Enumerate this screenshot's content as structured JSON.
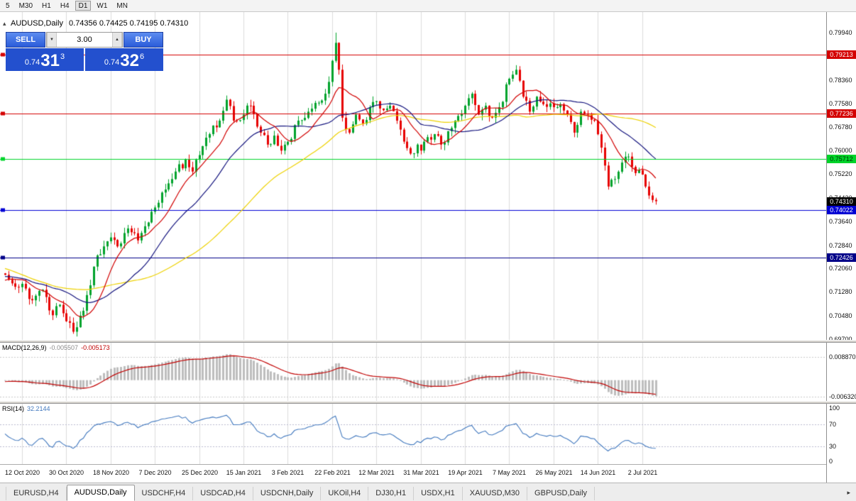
{
  "toolbar": {
    "timeframes": [
      "5",
      "M30",
      "H1",
      "H4",
      "D1",
      "W1",
      "MN"
    ],
    "active": "D1"
  },
  "chart_header": {
    "collapse_icon": "▴",
    "symbol_title": "AUDUSD,Daily",
    "ohlc": "0.74356 0.74425 0.74195 0.74310"
  },
  "one_click": {
    "sell_label": "SELL",
    "buy_label": "BUY",
    "volume": "3.00",
    "volume_down_icon": "▼",
    "volume_up_icon": "▲",
    "sell_price_small": "0.74",
    "sell_price_big": "31",
    "sell_price_sup": "3",
    "buy_price_small": "0.74",
    "buy_price_big": "32",
    "buy_price_sup": "6"
  },
  "price_scale": {
    "labels": [
      "0.79940",
      "0.79160",
      "0.78360",
      "0.77580",
      "0.76780",
      "0.76000",
      "0.75220",
      "0.74420",
      "0.73640",
      "0.72840",
      "0.72060",
      "0.71280",
      "0.70480",
      "0.69700"
    ],
    "current_price_label": "0.74310",
    "current_price": 0.7431,
    "current_tag_color": "#000000"
  },
  "levels": [
    {
      "price": 0.79213,
      "label": "0.79213",
      "line_color": "#D40000",
      "text_color": "#FFFFFF"
    },
    {
      "price": 0.77236,
      "label": "0.77236",
      "line_color": "#D40000",
      "text_color": "#FFFFFF"
    },
    {
      "price": 0.75712,
      "label": "0.75712",
      "line_color": "#00D42A",
      "text_color": "#003300"
    },
    {
      "price": 0.74022,
      "label": "0.74022",
      "line_color": "#0000D4",
      "text_color": "#FFFFFF"
    },
    {
      "price": 0.72426,
      "label": "0.72426",
      "line_color": "#000088",
      "text_color": "#FFFFFF"
    }
  ],
  "macd_panel": {
    "label": "MACD(12,26,9)",
    "value1": "-0.005507",
    "value2": "-0.005173",
    "scale_top": "0.008870",
    "scale_bottom": "-0.006320"
  },
  "rsi_panel": {
    "label": "RSI(14)",
    "value": "32.2144",
    "scale": [
      "100",
      "70",
      "30",
      "0"
    ],
    "level_high": 70,
    "level_low": 30
  },
  "time_axis": {
    "dates": [
      "12 Oct 2020",
      "30 Oct 2020",
      "18 Nov 2020",
      "7 Dec 2020",
      "25 Dec 2020",
      "15 Jan 2021",
      "3 Feb 2021",
      "22 Feb 2021",
      "12 Mar 2021",
      "31 Mar 2021",
      "19 Apr 2021",
      "7 May 2021",
      "26 May 2021",
      "14 Jun 2021",
      "2 Jul 2021"
    ]
  },
  "tabs": {
    "items": [
      "EURUSD,H4",
      "AUDUSD,Daily",
      "USDCHF,H4",
      "USDCAD,H4",
      "USDCNH,Daily",
      "UKOil,H4",
      "DJ30,H1",
      "USDX,H1",
      "XAUUSD,M30",
      "GBPUSD,Daily"
    ],
    "active_index": 1,
    "scroll_right_icon": "▸"
  },
  "chart_data": {
    "type": "candlestick",
    "symbol": "AUDUSD",
    "timeframe": "Daily",
    "last_ohlc": {
      "open": 0.74356,
      "high": 0.74425,
      "low": 0.74195,
      "close": 0.7431
    },
    "y_range": [
      0.697,
      0.7994
    ],
    "extreme_high": 0.7994,
    "extreme_low": 0.6988,
    "visible_candles": 192,
    "first_label_index": 5,
    "label_indices_step": 13,
    "close_anchors": [
      [
        0,
        0.7185
      ],
      [
        3,
        0.7145
      ],
      [
        5,
        0.7155
      ],
      [
        8,
        0.71
      ],
      [
        11,
        0.7135
      ],
      [
        14,
        0.705
      ],
      [
        16,
        0.7085
      ],
      [
        18,
        0.703
      ],
      [
        20,
        0.6995
      ],
      [
        21,
        0.701
      ],
      [
        23,
        0.7065
      ],
      [
        25,
        0.715
      ],
      [
        27,
        0.725
      ],
      [
        29,
        0.728
      ],
      [
        31,
        0.731
      ],
      [
        33,
        0.728
      ],
      [
        36,
        0.734
      ],
      [
        39,
        0.73
      ],
      [
        42,
        0.736
      ],
      [
        44,
        0.741
      ],
      [
        47,
        0.747
      ],
      [
        50,
        0.753
      ],
      [
        53,
        0.757
      ],
      [
        55,
        0.753
      ],
      [
        57,
        0.7585
      ],
      [
        60,
        0.7655
      ],
      [
        63,
        0.77
      ],
      [
        65,
        0.777
      ],
      [
        67,
        0.77
      ],
      [
        70,
        0.772
      ],
      [
        72,
        0.775
      ],
      [
        74,
        0.768
      ],
      [
        77,
        0.762
      ],
      [
        79,
        0.765
      ],
      [
        81,
        0.76
      ],
      [
        83,
        0.763
      ],
      [
        86,
        0.77
      ],
      [
        89,
        0.773
      ],
      [
        92,
        0.776
      ],
      [
        94,
        0.779
      ],
      [
        96,
        0.79
      ],
      [
        97,
        0.796
      ],
      [
        98,
        0.787
      ],
      [
        99,
        0.771
      ],
      [
        101,
        0.766
      ],
      [
        103,
        0.772
      ],
      [
        105,
        0.769
      ],
      [
        107,
        0.7745
      ],
      [
        109,
        0.7765
      ],
      [
        111,
        0.7735
      ],
      [
        113,
        0.775
      ],
      [
        115,
        0.77
      ],
      [
        117,
        0.763
      ],
      [
        119,
        0.759
      ],
      [
        121,
        0.762
      ],
      [
        122,
        0.76
      ],
      [
        124,
        0.7645
      ],
      [
        126,
        0.7655
      ],
      [
        128,
        0.762
      ],
      [
        130,
        0.7665
      ],
      [
        132,
        0.77
      ],
      [
        135,
        0.775
      ],
      [
        137,
        0.779
      ],
      [
        139,
        0.772
      ],
      [
        141,
        0.775
      ],
      [
        143,
        0.771
      ],
      [
        145,
        0.7745
      ],
      [
        148,
        0.784
      ],
      [
        150,
        0.787
      ],
      [
        152,
        0.778
      ],
      [
        154,
        0.773
      ],
      [
        156,
        0.778
      ],
      [
        158,
        0.7755
      ],
      [
        161,
        0.7745
      ],
      [
        163,
        0.7755
      ],
      [
        165,
        0.772
      ],
      [
        167,
        0.766
      ],
      [
        169,
        0.773
      ],
      [
        171,
        0.772
      ],
      [
        173,
        0.77
      ],
      [
        175,
        0.761
      ],
      [
        176,
        0.755
      ],
      [
        177,
        0.748
      ],
      [
        179,
        0.7505
      ],
      [
        181,
        0.756
      ],
      [
        183,
        0.758
      ],
      [
        185,
        0.7525
      ],
      [
        187,
        0.752
      ],
      [
        188,
        0.748
      ],
      [
        189,
        0.745
      ],
      [
        190,
        0.7435
      ],
      [
        191,
        0.7431
      ]
    ],
    "warmup_anchors": [
      [
        -60,
        0.73
      ],
      [
        -50,
        0.74
      ],
      [
        -40,
        0.725
      ],
      [
        -35,
        0.705
      ],
      [
        -25,
        0.716
      ],
      [
        -15,
        0.721
      ],
      [
        -8,
        0.714
      ],
      [
        -1,
        0.719
      ]
    ],
    "candle_up_color": "#00A22B",
    "candle_down_color": "#E60000",
    "moving_averages": [
      {
        "name": "fast-ma",
        "color": "#D10000"
      },
      {
        "name": "medium-ma",
        "color": "#14147E"
      },
      {
        "name": "slow-ma",
        "color": "#EDD100"
      }
    ],
    "macd": {
      "histogram_color": "#BDBDBD",
      "signal_color": "#C00000"
    },
    "rsi": {
      "line_color": "#4178BE"
    },
    "grid_color": "#DCDCDC"
  }
}
